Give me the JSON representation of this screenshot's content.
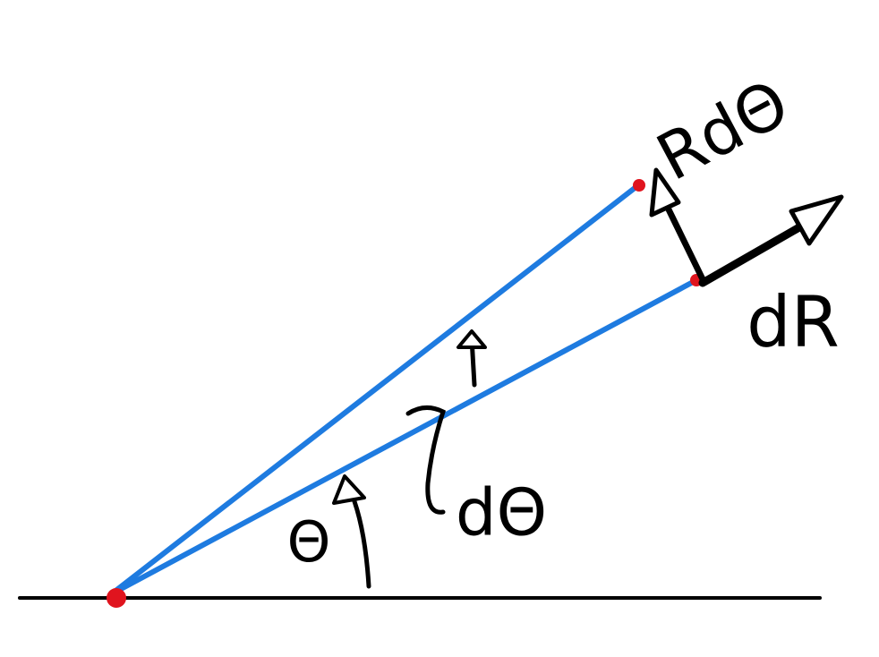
{
  "labels": {
    "r_dtheta": "RdΘ",
    "dr": "dR",
    "dtheta": "dΘ",
    "theta": "Θ"
  }
}
